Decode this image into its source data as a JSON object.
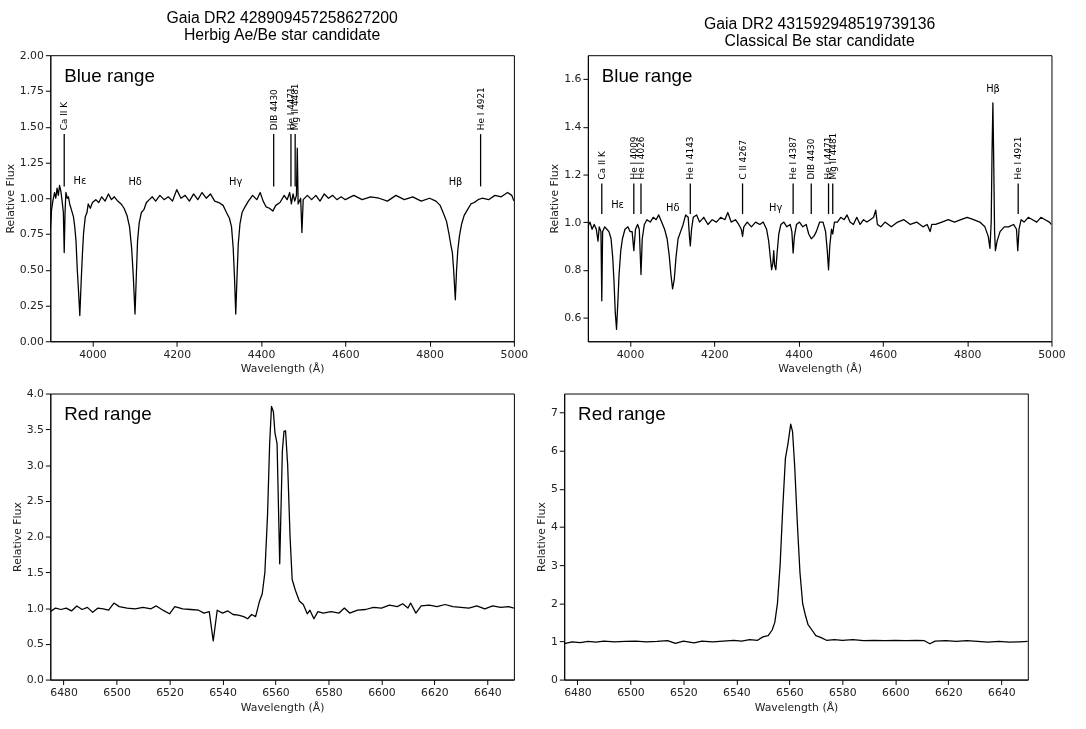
{
  "chart_data": [
    {
      "type": "line",
      "title": "Gaia DR2 428909457258627200",
      "subtitle": "Herbig Ae/Be star candidate",
      "xlabel": "Wavelength (Å)",
      "ylabel": "Relative Flux",
      "xlim": [
        3900,
        5000
      ],
      "xticks": [
        4000,
        4200,
        4400,
        4600,
        4800,
        5000
      ],
      "ylim": [
        0,
        2
      ],
      "yticks": [
        {
          "value": 0,
          "label": "0.00"
        },
        {
          "value": 0.25,
          "label": "0.25"
        },
        {
          "value": 0.5,
          "label": "0.50"
        },
        {
          "value": 0.75,
          "label": "0.75"
        },
        {
          "value": 1,
          "label": "1.00"
        },
        {
          "value": 1.25,
          "label": "1.25"
        },
        {
          "value": 1.5,
          "label": "1.50"
        },
        {
          "value": 1.75,
          "label": "1.75"
        },
        {
          "value": 2,
          "label": "2.00"
        }
      ],
      "x": [
        3900,
        3903,
        3906,
        3910,
        3913,
        3916,
        3919,
        3922,
        3925,
        3928,
        3931,
        3933,
        3935,
        3937,
        3940,
        3943,
        3946,
        3950,
        3955,
        3958,
        3961,
        3964,
        3967,
        3970,
        3973,
        3976,
        3979,
        3983,
        3987,
        3990,
        3995,
        4000,
        4008,
        4015,
        4022,
        4030,
        4038,
        4045,
        4052,
        4060,
        4068,
        4075,
        4082,
        4088,
        4093,
        4097,
        4101,
        4104,
        4107,
        4111,
        4116,
        4122,
        4128,
        4135,
        4142,
        4150,
        4160,
        4170,
        4180,
        4190,
        4200,
        4210,
        4220,
        4230,
        4240,
        4250,
        4260,
        4270,
        4280,
        4290,
        4300,
        4310,
        4318,
        4325,
        4330,
        4334,
        4337,
        4340,
        4343,
        4346,
        4350,
        4355,
        4362,
        4370,
        4380,
        4390,
        4398,
        4405,
        4412,
        4420,
        4428,
        4435,
        4445,
        4455,
        4462,
        4468,
        4472,
        4476,
        4480,
        4484,
        4486,
        4488,
        4494,
        4497,
        4500,
        4510,
        4520,
        4530,
        4540,
        4550,
        4560,
        4570,
        4580,
        4590,
        4600,
        4620,
        4640,
        4660,
        4680,
        4700,
        4720,
        4740,
        4760,
        4780,
        4800,
        4815,
        4825,
        4832,
        4840,
        4846,
        4850,
        4854,
        4857,
        4861,
        4864,
        4867,
        4871,
        4876,
        4882,
        4890,
        4898,
        4906,
        4915,
        4925,
        4940,
        4955,
        4970,
        4985,
        4995,
        5000
      ],
      "series": [
        {
          "color": "#000000",
          "values": [
            0.78,
            0.92,
            0.98,
            1.04,
            1.0,
            1.07,
            1.02,
            1.09,
            1.05,
            0.98,
            0.9,
            0.62,
            0.9,
            1.04,
            1.0,
            1.01,
            0.96,
            0.92,
            0.87,
            0.8,
            0.7,
            0.5,
            0.35,
            0.18,
            0.4,
            0.6,
            0.76,
            0.87,
            0.9,
            0.96,
            0.93,
            0.97,
            0.99,
            0.97,
            1.01,
            0.98,
            1.03,
            0.99,
            1.01,
            0.98,
            0.96,
            0.93,
            0.88,
            0.8,
            0.65,
            0.45,
            0.19,
            0.45,
            0.7,
            0.83,
            0.9,
            0.92,
            0.97,
            0.99,
            1.01,
            0.98,
            1.02,
            0.99,
            1.01,
            0.98,
            1.06,
            1.0,
            1.02,
            0.98,
            1.03,
            0.99,
            1.04,
            1.0,
            1.03,
            0.98,
            0.97,
            0.95,
            0.9,
            0.86,
            0.8,
            0.65,
            0.45,
            0.19,
            0.45,
            0.68,
            0.82,
            0.9,
            0.94,
            0.98,
            1.02,
            0.99,
            1.04,
            0.98,
            0.94,
            0.93,
            0.91,
            0.95,
            0.97,
            1.02,
            0.99,
            1.04,
            0.96,
            1.03,
            0.98,
            1.02,
            1.35,
            0.96,
            1.0,
            0.76,
            0.99,
            1.02,
            0.99,
            1.02,
            0.98,
            1.03,
            1.0,
            1.02,
            0.99,
            1.01,
            0.99,
            1.02,
            0.99,
            1.01,
            1.0,
            0.98,
            1.02,
            0.99,
            1.01,
            0.98,
            1.0,
            0.98,
            0.95,
            0.9,
            0.84,
            0.75,
            0.68,
            0.62,
            0.5,
            0.29,
            0.5,
            0.64,
            0.74,
            0.82,
            0.88,
            0.92,
            0.96,
            0.97,
            0.99,
            1.0,
            0.99,
            1.02,
            1.01,
            1.04,
            1.02,
            0.98
          ]
        }
      ],
      "ref_lines": [
        {
          "axis": "x",
          "value": 3933,
          "label": "Ca II K"
        },
        {
          "axis": "x",
          "value": 4430,
          "label": "DIB 4430"
        },
        {
          "axis": "x",
          "value": 4471,
          "label": "He I 4471"
        },
        {
          "axis": "x",
          "value": 4481,
          "label": "Mg II 4481"
        },
        {
          "axis": "x",
          "value": 4921,
          "label": "He I 4921"
        }
      ],
      "annotations": [
        "Blue range",
        "Hε",
        "Hδ",
        "Hγ",
        "Hβ"
      ]
    },
    {
      "type": "line",
      "title": "Gaia DR2 431592948519739136",
      "subtitle": "Classical Be star candidate",
      "xlabel": "Wavelength (Å)",
      "ylabel": "Relative Flux",
      "xlim": [
        3900,
        5000
      ],
      "xticks": [
        4000,
        4200,
        4400,
        4600,
        4800,
        5000
      ],
      "ylim": [
        0.5,
        1.7
      ],
      "yticks": [
        0.6,
        0.8,
        {
          "value": 1,
          "label": "1.0"
        },
        1.2,
        1.4,
        1.6
      ],
      "x": [
        3900,
        3905,
        3910,
        3915,
        3920,
        3924,
        3927,
        3931,
        3933,
        3935,
        3940,
        3945,
        3950,
        3955,
        3959,
        3962,
        3965,
        3968,
        3971,
        3974,
        3978,
        3982,
        3988,
        3995,
        4000,
        4005,
        4009,
        4013,
        4018,
        4022,
        4026,
        4029,
        4034,
        4040,
        4048,
        4055,
        4062,
        4068,
        4075,
        4082,
        4088,
        4093,
        4097,
        4101,
        4105,
        4109,
        4114,
        4120,
        4126,
        4132,
        4138,
        4141,
        4143,
        4146,
        4150,
        4158,
        4165,
        4175,
        4185,
        4195,
        4205,
        4215,
        4225,
        4232,
        4240,
        4250,
        4258,
        4264,
        4267,
        4270,
        4278,
        4288,
        4298,
        4308,
        4316,
        4324,
        4329,
        4333,
        4336,
        4339,
        4341,
        4343,
        4346,
        4349,
        4353,
        4358,
        4365,
        4372,
        4380,
        4384,
        4387,
        4390,
        4395,
        4402,
        4410,
        4418,
        4424,
        4430,
        4436,
        4442,
        4450,
        4458,
        4464,
        4468,
        4471,
        4474,
        4478,
        4481,
        4485,
        4492,
        4500,
        4508,
        4515,
        4522,
        4530,
        4538,
        4546,
        4554,
        4562,
        4570,
        4578,
        4583,
        4587,
        4595,
        4605,
        4620,
        4635,
        4650,
        4665,
        4680,
        4695,
        4705,
        4712,
        4716,
        4725,
        4740,
        4755,
        4770,
        4785,
        4800,
        4815,
        4830,
        4842,
        4850,
        4854,
        4857,
        4859,
        4861,
        4863,
        4865,
        4867,
        4871,
        4878,
        4888,
        4898,
        4910,
        4917,
        4920,
        4923,
        4928,
        4935,
        4945,
        4955,
        4965,
        4975,
        4985,
        4995,
        5000
      ],
      "series": [
        {
          "color": "#000000",
          "values": [
            0.98,
            1.0,
            0.97,
            0.99,
            0.97,
            0.92,
            0.98,
            0.96,
            0.67,
            0.96,
            0.98,
            0.97,
            0.96,
            0.93,
            0.85,
            0.75,
            0.62,
            0.55,
            0.66,
            0.78,
            0.88,
            0.93,
            0.97,
            0.98,
            0.96,
            0.96,
            0.88,
            0.97,
            0.99,
            0.97,
            0.78,
            0.93,
            0.99,
            1.01,
            1.0,
            1.02,
            1.01,
            1.03,
            1.0,
            0.97,
            0.93,
            0.86,
            0.78,
            0.72,
            0.76,
            0.85,
            0.93,
            0.96,
            0.99,
            1.03,
            1.02,
            0.94,
            0.9,
            0.97,
            1.02,
            1.03,
            1.0,
            1.02,
            0.99,
            1.01,
            1.0,
            1.02,
            1.01,
            1.04,
            1.0,
            1.01,
            0.99,
            0.97,
            0.94,
            0.98,
            1.0,
            0.98,
            1.0,
            0.99,
            1.0,
            0.97,
            0.92,
            0.85,
            0.8,
            0.83,
            0.88,
            0.82,
            0.8,
            0.87,
            0.95,
            0.99,
            1.0,
            0.98,
            0.99,
            0.96,
            0.87,
            0.94,
            0.99,
            1.0,
            0.98,
            0.99,
            0.95,
            0.93,
            0.94,
            0.96,
            1.0,
            1.0,
            0.96,
            0.88,
            0.8,
            0.9,
            0.97,
            0.95,
            1.0,
            1.0,
            1.02,
            1.01,
            1.03,
            1.0,
            0.99,
            1.02,
            0.99,
            1.01,
            1.0,
            1.01,
            1.02,
            1.05,
            0.99,
            0.98,
            1.0,
            0.98,
            1.0,
            1.01,
            0.99,
            1.0,
            0.98,
            0.99,
            0.96,
            0.99,
            0.99,
            1.0,
            1.01,
            1.0,
            1.01,
            1.02,
            1.01,
            1.0,
            0.98,
            0.94,
            0.89,
            1.0,
            1.3,
            1.5,
            1.25,
            0.96,
            0.88,
            0.92,
            0.96,
            0.98,
            0.98,
            0.99,
            0.97,
            0.88,
            0.97,
            1.01,
            1.0,
            1.02,
            1.01,
            1.0,
            1.02,
            1.01,
            1.0,
            0.99
          ]
        }
      ],
      "ref_lines": [
        {
          "axis": "x",
          "value": 3933,
          "label": "Ca II K"
        },
        {
          "axis": "x",
          "value": 4009,
          "label": "He I 4009"
        },
        {
          "axis": "x",
          "value": 4026,
          "label": "He I 4026"
        },
        {
          "axis": "x",
          "value": 4143,
          "label": "He I 4143"
        },
        {
          "axis": "x",
          "value": 4267,
          "label": "C II 4267"
        },
        {
          "axis": "x",
          "value": 4387,
          "label": "He I 4387"
        },
        {
          "axis": "x",
          "value": 4430,
          "label": "DIB 4430"
        },
        {
          "axis": "x",
          "value": 4471,
          "label": "He I 4471"
        },
        {
          "axis": "x",
          "value": 4481,
          "label": "Mg II 4481"
        },
        {
          "axis": "x",
          "value": 4921,
          "label": "He I 4921"
        }
      ],
      "annotations": [
        "Blue range",
        "Hε",
        "Hδ",
        "Hγ",
        "Hβ"
      ]
    },
    {
      "type": "line",
      "xlabel": "Wavelength (Å)",
      "ylabel": "Relative Flux",
      "xlim": [
        6475,
        6650
      ],
      "xticks": [
        6480,
        6500,
        6520,
        6540,
        6560,
        6580,
        6600,
        6620,
        6640
      ],
      "ylim": [
        0,
        4
      ],
      "yticks": [
        {
          "value": 0,
          "label": "0.0"
        },
        0.5,
        {
          "value": 1,
          "label": "1.0"
        },
        1.5,
        {
          "value": 2,
          "label": "2.0"
        },
        2.5,
        {
          "value": 3,
          "label": "3.0"
        },
        3.5,
        {
          "value": 4,
          "label": "4.0"
        }
      ],
      "x": [
        6475,
        6477,
        6479,
        6481,
        6483,
        6485,
        6487,
        6489,
        6491,
        6493,
        6495,
        6497,
        6499,
        6501,
        6504,
        6507,
        6510,
        6513,
        6515,
        6518,
        6520,
        6522,
        6525,
        6528,
        6531,
        6533,
        6535,
        6536.5,
        6538,
        6540,
        6542,
        6544,
        6546,
        6548,
        6549.5,
        6551,
        6552.5,
        6554,
        6555,
        6556,
        6557,
        6557.8,
        6558.5,
        6559.2,
        6559.8,
        6560.6,
        6561.6,
        6562.6,
        6563.2,
        6563.8,
        6564.6,
        6565.5,
        6566.3,
        6567.5,
        6569,
        6570.5,
        6572,
        6573,
        6574.5,
        6576,
        6578,
        6581,
        6584,
        6586,
        6588,
        6591,
        6594,
        6597,
        6600,
        6603,
        6606,
        6608,
        6610,
        6611,
        6613,
        6615,
        6618,
        6621,
        6624,
        6627,
        6630,
        6633,
        6636,
        6639,
        6642,
        6645,
        6648,
        6650
      ],
      "series": [
        {
          "color": "#000000",
          "values": [
            0.95,
            1.0,
            0.98,
            1.0,
            0.96,
            1.03,
            0.98,
            1.01,
            0.94,
            1.0,
            0.99,
            0.97,
            1.07,
            1.02,
            1.0,
            0.99,
            1.01,
            0.99,
            1.03,
            0.96,
            0.92,
            1.02,
            0.99,
            0.98,
            0.97,
            0.93,
            0.95,
            0.54,
            0.97,
            0.93,
            0.96,
            0.91,
            0.9,
            0.88,
            0.85,
            0.91,
            0.88,
            1.1,
            1.2,
            1.5,
            2.3,
            3.3,
            3.82,
            3.75,
            3.45,
            3.3,
            1.62,
            3.2,
            3.47,
            3.48,
            3.0,
            2.0,
            1.4,
            1.25,
            1.1,
            1.05,
            0.92,
            0.97,
            0.85,
            0.95,
            0.93,
            0.95,
            0.93,
            1.0,
            0.93,
            0.97,
            0.98,
            1.01,
            1.0,
            1.04,
            1.02,
            1.06,
            1.0,
            1.07,
            0.93,
            1.03,
            1.04,
            1.02,
            1.05,
            1.02,
            1.01,
            1.0,
            1.03,
            0.99,
            1.03,
            1.01,
            1.02,
            1.0
          ]
        }
      ],
      "annotations": [
        "Red range"
      ]
    },
    {
      "type": "line",
      "xlabel": "Wavelength (Å)",
      "ylabel": "Relative Flux",
      "xlim": [
        6475,
        6650
      ],
      "xticks": [
        6480,
        6500,
        6520,
        6540,
        6560,
        6580,
        6600,
        6620,
        6640
      ],
      "ylim": [
        0,
        7.5
      ],
      "yticks": [
        0,
        1,
        2,
        3,
        4,
        5,
        6,
        7
      ],
      "x": [
        6475,
        6478,
        6481,
        6484,
        6487,
        6490,
        6494,
        6498,
        6502,
        6506,
        6510,
        6514,
        6517,
        6520,
        6524,
        6527,
        6531,
        6535,
        6539,
        6542,
        6545,
        6548,
        6550,
        6552,
        6553.5,
        6554.5,
        6555.5,
        6556.5,
        6557.5,
        6558.5,
        6559.5,
        6560.5,
        6561.2,
        6562,
        6563,
        6564,
        6565,
        6566,
        6567,
        6568.5,
        6570,
        6572,
        6574,
        6577,
        6580,
        6584,
        6588,
        6592,
        6596,
        6600,
        6604,
        6608,
        6611,
        6613,
        6615,
        6619,
        6623,
        6627,
        6631,
        6635,
        6639,
        6643,
        6647,
        6650
      ],
      "series": [
        {
          "color": "#000000",
          "values": [
            0.94,
            0.99,
            0.97,
            1.0,
            0.98,
            1.01,
            0.99,
            1.0,
            1.01,
            0.99,
            1.0,
            1.02,
            0.95,
            1.01,
            0.96,
            1.01,
            0.99,
            1.01,
            1.03,
            1.01,
            1.05,
            1.03,
            1.12,
            1.15,
            1.3,
            1.5,
            2.0,
            3.0,
            4.5,
            5.8,
            6.2,
            6.7,
            6.5,
            5.6,
            4.1,
            2.8,
            2.0,
            1.7,
            1.45,
            1.3,
            1.15,
            1.1,
            1.03,
            1.05,
            1.03,
            1.05,
            1.02,
            1.03,
            1.02,
            1.03,
            1.02,
            1.03,
            1.02,
            0.94,
            1.01,
            1.02,
            1.0,
            1.02,
            1.0,
            0.98,
            1.0,
            0.98,
            0.99,
            1.0
          ]
        }
      ],
      "annotations": [
        "Red range"
      ]
    }
  ]
}
